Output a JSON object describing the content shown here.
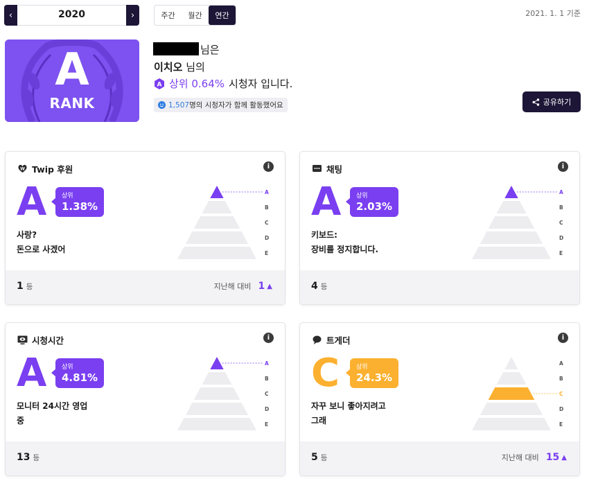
{
  "year_picker": {
    "year": "2020",
    "prev_icon": "chevron-left-icon",
    "next_icon": "chevron-right-icon"
  },
  "period_tabs": [
    {
      "label": "주간",
      "active": false
    },
    {
      "label": "월간",
      "active": false
    },
    {
      "label": "연간",
      "active": true
    }
  ],
  "as_of": "2021. 1. 1 기준",
  "header": {
    "rank_letter": "A",
    "rank_word": "RANK",
    "suffix1": "님은",
    "streamer": "이치오",
    "streamer_suffix": "님의",
    "top_percent_text": "상위 0.64%",
    "viewer_text": "시청자 입니다.",
    "viewer_count": "1,507",
    "viewer_count_suffix": "명의 시청자가 함께 활동했어요",
    "share_label": "공유하기"
  },
  "colors": {
    "purple": "#7a3ff0",
    "orange": "#fbb02f",
    "navy": "#1d1637",
    "pyramid_gray": "#ededf0"
  },
  "cards": [
    {
      "title": "Twip 후원",
      "icon": "heart-icon",
      "grade": "A",
      "grade_color": "#7a3ff0",
      "top_label": "상위",
      "percent": "1.38%",
      "desc_line1": "사랑?",
      "desc_line2": "돈으로 사겠어",
      "rank": "1",
      "rank_unit": "등",
      "compare_label": "지난해 대비",
      "compare_delta": "1"
    },
    {
      "title": "채팅",
      "icon": "chat-icon",
      "grade": "A",
      "grade_color": "#7a3ff0",
      "top_label": "상위",
      "percent": "2.03%",
      "desc_line1": "키보드:",
      "desc_line2": "장비를 정지합니다.",
      "rank": "4",
      "rank_unit": "등",
      "compare_label": "",
      "compare_delta": ""
    },
    {
      "title": "시청시간",
      "icon": "monitor-eye-icon",
      "grade": "A",
      "grade_color": "#7a3ff0",
      "top_label": "상위",
      "percent": "4.81%",
      "desc_line1": "모니터 24시간 영업",
      "desc_line2": "중",
      "rank": "13",
      "rank_unit": "등",
      "compare_label": "",
      "compare_delta": ""
    },
    {
      "title": "트게더",
      "icon": "speech-bubble-icon",
      "grade": "C",
      "grade_color": "#fbb02f",
      "top_label": "상위",
      "percent": "24.3%",
      "desc_line1": "자꾸 보니 좋아지려고",
      "desc_line2": "그래",
      "rank": "5",
      "rank_unit": "등",
      "compare_label": "지난해 대비",
      "compare_delta": "15"
    }
  ],
  "grade_scale": [
    "A",
    "B",
    "C",
    "D",
    "E"
  ]
}
